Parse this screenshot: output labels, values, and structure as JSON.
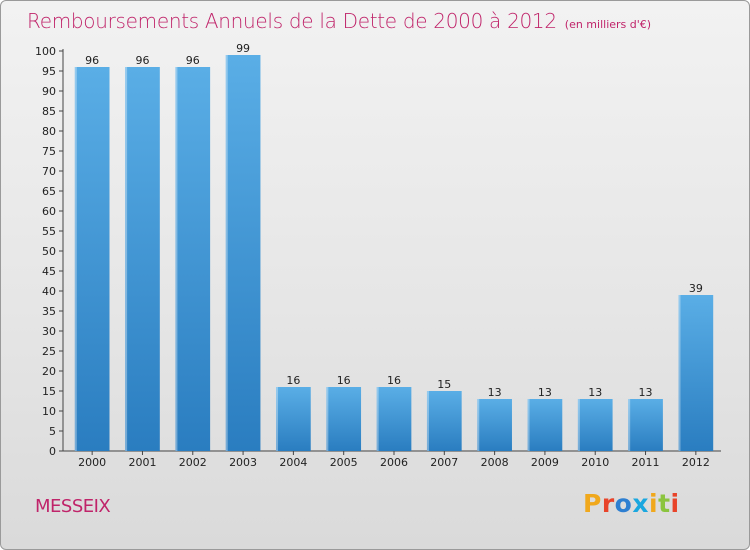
{
  "header": {
    "title": "Remboursements Annuels de la Dette de 2000 à 2012",
    "unit": "(en milliers d'€)"
  },
  "footer": {
    "commune": "MESSEIX",
    "logo_text": "Proxiti",
    "logo_colors": [
      "#f0a81c",
      "#e8442a",
      "#2e7fd1",
      "#1aa7df",
      "#f0a81c",
      "#8bc43f",
      "#e8442a"
    ]
  },
  "colors": {
    "bar_top": "#5aaee6",
    "bar_bottom": "#2a7dc0",
    "title": "#c0246a"
  },
  "chart_data": {
    "type": "bar",
    "title": "Remboursements Annuels de la Dette de 2000 à 2012",
    "subtitle": "(en milliers d'€)",
    "xlabel": "",
    "ylabel": "",
    "categories": [
      "2000",
      "2001",
      "2002",
      "2003",
      "2004",
      "2005",
      "2006",
      "2007",
      "2008",
      "2009",
      "2010",
      "2011",
      "2012"
    ],
    "values": [
      96,
      96,
      96,
      99,
      16,
      16,
      16,
      15,
      13,
      13,
      13,
      13,
      39
    ],
    "ylim": [
      0,
      100
    ],
    "ytick_step": 5,
    "grid": false,
    "data_labels": true
  }
}
